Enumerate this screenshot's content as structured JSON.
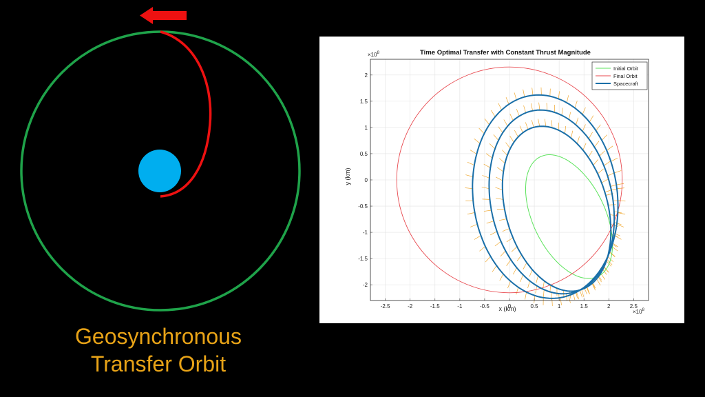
{
  "diagram": {
    "caption_line1": "Geosynchronous",
    "caption_line2": "Transfer Orbit",
    "colors": {
      "orbit": "#1fa34a",
      "transfer": "#ee1111",
      "planet": "#00aeef",
      "arrow": "#ee1111",
      "caption": "#e8a317"
    }
  },
  "chart_data": {
    "type": "line",
    "title": "Time Optimal Transfer with Constant Thrust Magnitude",
    "xlabel": "x (km)",
    "ylabel": "y (km)",
    "x_exponent": "×10",
    "x_exponent_power": "8",
    "y_exponent": "×10",
    "y_exponent_power": "8",
    "xlim": [
      -2.8,
      2.8
    ],
    "ylim": [
      -2.3,
      2.3
    ],
    "xticks": [
      "-2.5",
      "-2",
      "-1.5",
      "-1",
      "-0.5",
      "0",
      "0.5",
      "1",
      "1.5",
      "2",
      "2.5"
    ],
    "yticks": [
      "2",
      "1.5",
      "1",
      "0.5",
      "0",
      "-0.5",
      "-1",
      "-1.5",
      "-2"
    ],
    "grid": true,
    "legend_position": "top-right",
    "legend": [
      "Initial Orbit",
      "Final Orbit",
      "Spacecraft"
    ],
    "colors": {
      "initial": "#5be35b",
      "final": "#e8494f",
      "spacecraft": "#1a6fa8",
      "thrust": "#f0a830"
    },
    "series": [
      {
        "name": "Initial Orbit",
        "shape": "ellipse",
        "center": [
          1.2,
          -0.7
        ],
        "semi_axes": [
          0.72,
          1.28
        ],
        "rotation_deg": 28
      },
      {
        "name": "Final Orbit",
        "shape": "circle",
        "center": [
          0,
          0
        ],
        "radius": 2.27
      },
      {
        "name": "Spacecraft",
        "loops": [
          {
            "center": [
              0.95,
              -0.55
            ],
            "semi_axes": [
              1.02,
              1.62
            ],
            "rotation_deg": 18
          },
          {
            "center": [
              0.85,
              -0.42
            ],
            "semi_axes": [
              1.22,
              1.78
            ],
            "rotation_deg": 14
          },
          {
            "center": [
              0.72,
              -0.32
            ],
            "semi_axes": [
              1.45,
              1.95
            ],
            "rotation_deg": 9
          }
        ]
      }
    ]
  }
}
